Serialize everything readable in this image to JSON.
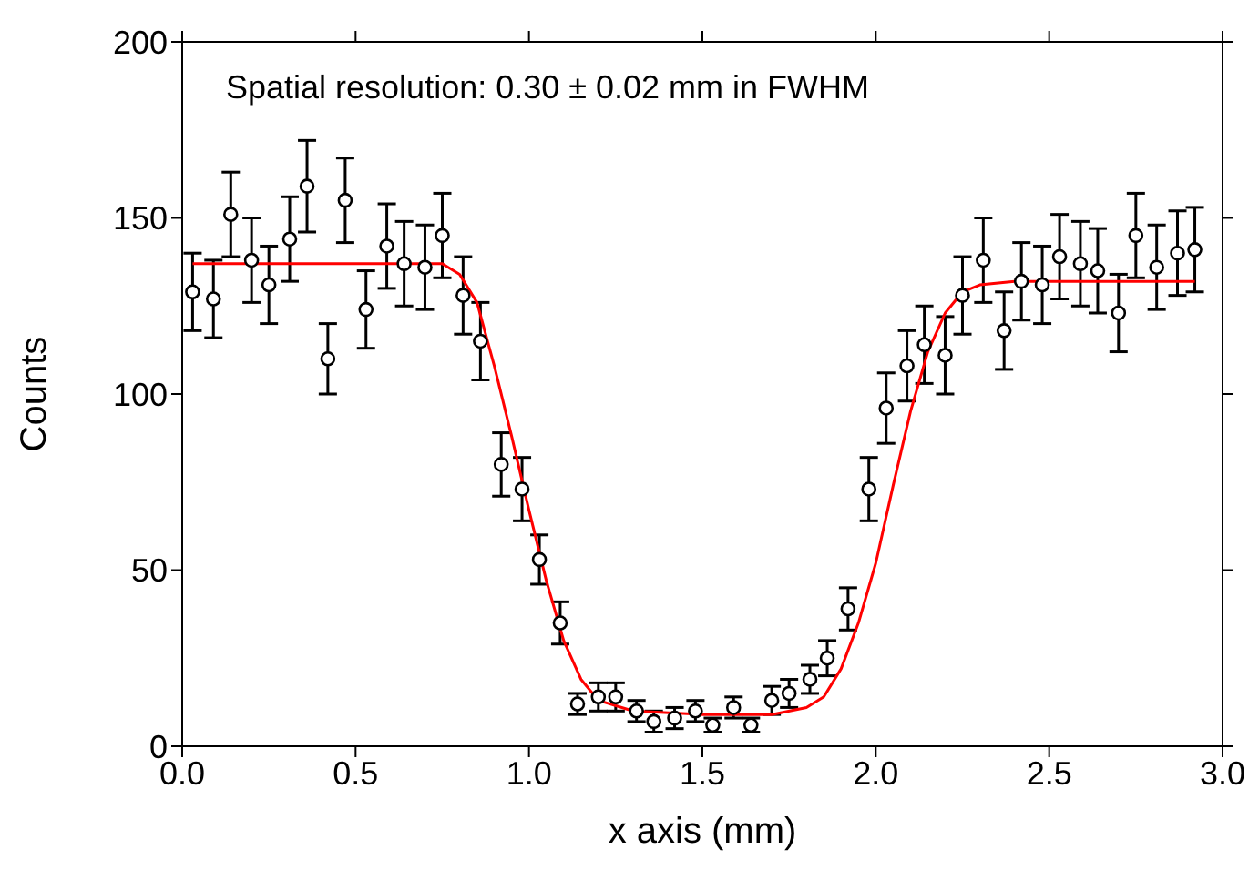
{
  "chart_data": {
    "type": "scatter",
    "xlabel": "x axis (mm)",
    "ylabel": "Counts",
    "annotations": [
      "Spatial resolution: 0.30 ± 0.02 mm in FWHM"
    ],
    "xlim": [
      0,
      3
    ],
    "xticks": [
      {
        "value": 0,
        "label": "0.0"
      },
      {
        "value": 0.5,
        "label": "0.5"
      },
      {
        "value": 1,
        "label": "1.0"
      },
      {
        "value": 1.5,
        "label": "1.5"
      },
      {
        "value": 2,
        "label": "2.0"
      },
      {
        "value": 2.5,
        "label": "2.5"
      },
      {
        "value": 3,
        "label": "3.0"
      }
    ],
    "ylim": [
      0,
      200
    ],
    "yticks": [
      0,
      50,
      100,
      150,
      200
    ],
    "legend": false,
    "series": [
      {
        "color": "#000000",
        "marker": "circle",
        "x": [
          0.03,
          0.09,
          0.14,
          0.2,
          0.25,
          0.31,
          0.36,
          0.42,
          0.47,
          0.53,
          0.59,
          0.64,
          0.7,
          0.75,
          0.81,
          0.86,
          0.92,
          0.98,
          1.03,
          1.09,
          1.14,
          1.2,
          1.25,
          1.31,
          1.36,
          1.42,
          1.48,
          1.53,
          1.59,
          1.64,
          1.7,
          1.75,
          1.81,
          1.86,
          1.92,
          1.98,
          2.03,
          2.09,
          2.14,
          2.2,
          2.25,
          2.31,
          2.37,
          2.42,
          2.48,
          2.53,
          2.59,
          2.64,
          2.7,
          2.75,
          2.81,
          2.87,
          2.92
        ],
        "values": [
          129,
          127,
          151,
          138,
          131,
          144,
          159,
          110,
          155,
          124,
          142,
          137,
          136,
          145,
          128,
          115,
          80,
          73,
          53,
          35,
          12,
          14,
          14,
          10,
          7,
          8,
          10,
          6,
          11,
          6,
          13,
          15,
          19,
          25,
          39,
          73,
          96,
          108,
          114,
          111,
          128,
          138,
          118,
          132,
          131,
          139,
          137,
          135,
          123,
          145,
          136,
          140,
          141
        ],
        "errors": [
          11,
          11,
          12,
          12,
          11,
          12,
          13,
          10,
          12,
          11,
          12,
          12,
          12,
          12,
          11,
          11,
          9,
          9,
          7,
          6,
          3,
          4,
          4,
          3,
          3,
          3,
          3,
          2,
          3,
          2,
          4,
          4,
          4,
          5,
          6,
          9,
          10,
          10,
          11,
          11,
          11,
          12,
          11,
          11,
          11,
          12,
          12,
          12,
          11,
          12,
          12,
          12,
          12
        ]
      },
      {
        "type": "line",
        "color": "#ff0000",
        "x": [
          0.03,
          0.75,
          0.8,
          0.85,
          0.9,
          0.95,
          1.0,
          1.05,
          1.1,
          1.15,
          1.2,
          1.3,
          1.5,
          1.7,
          1.8,
          1.85,
          1.9,
          1.95,
          2.0,
          2.05,
          2.1,
          2.15,
          2.2,
          2.25,
          2.3,
          2.4,
          2.92
        ],
        "values": [
          137,
          137,
          134,
          126,
          108,
          88,
          67,
          47,
          30,
          19,
          13,
          10,
          9,
          9,
          11,
          14,
          22,
          35,
          52,
          74,
          95,
          112,
          123,
          129,
          131,
          132,
          132
        ]
      }
    ]
  }
}
